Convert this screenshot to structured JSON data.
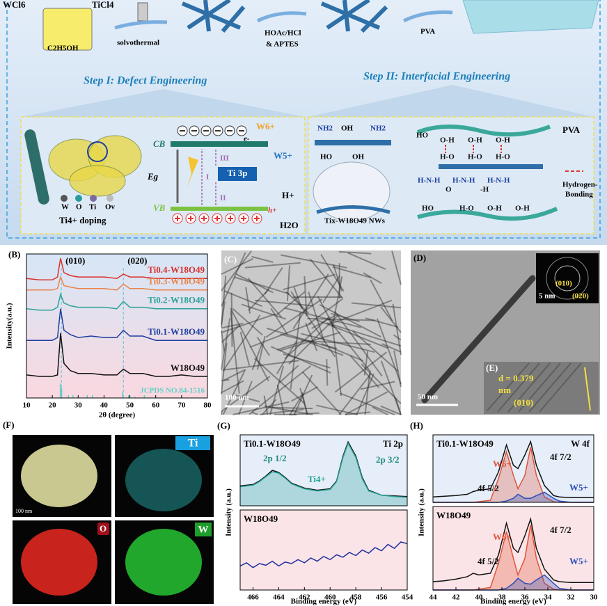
{
  "schematic": {
    "reagents": [
      "WCl6",
      "TiCl4",
      "C2H5OH"
    ],
    "steps": [
      "solvothermal",
      "HOAc/HCl",
      "& APTES",
      "PVA"
    ],
    "step1": "Step I: Defect Engineering",
    "step2": "Step II: Interfacial Engineering",
    "band": {
      "cb": "CB",
      "vb": "VB",
      "eg": "Eg",
      "electron": "e-",
      "hole": "h+",
      "w6": "W6+",
      "w5": "W5+",
      "h_plus": "H+",
      "water": "H2O",
      "ti3p": "Ti 3p",
      "paths": [
        "I",
        "II",
        "III"
      ]
    },
    "doping": {
      "legend": [
        "W",
        "O",
        "Ti",
        "Ov"
      ],
      "caption": "Ti4+ doping"
    },
    "interface": {
      "groups": [
        "NH2",
        "OH",
        "NH2",
        "HO",
        "OH"
      ],
      "nws": "Tix-W18O49 NWs",
      "pva": "PVA",
      "hbond": [
        "Hydrogen-",
        "Bonding"
      ],
      "bonds": [
        "HO",
        "O-H",
        "O-H",
        "O-H",
        "H-O",
        "H-O",
        "H-O",
        "H-N-H",
        "H-N-H",
        "H-N-H",
        "O",
        "-H",
        "HO",
        "H-O",
        "O-H",
        "O-H"
      ]
    }
  },
  "images": {
    "c": {
      "label": "(C)",
      "scale": "100 nm"
    },
    "d": {
      "label": "(D)",
      "scale": "50 nm",
      "saed": [
        "(010)",
        "(020)"
      ],
      "saed_scale": "5 nm",
      "inset_label": "(E)",
      "d_spacing": "d = 0.379",
      "unit": "nm",
      "plane": "(010)"
    },
    "f": {
      "label": "(F)",
      "maps": [
        "Ti",
        "O",
        "W"
      ],
      "scale": "100 nm"
    }
  },
  "chart_data": [
    {
      "type": "line",
      "panel": "(B)",
      "xlabel": "2θ (degree)",
      "ylabel": "Intensity(a.u.)",
      "x": [
        10,
        15,
        20,
        22,
        23.2,
        24.5,
        27,
        30,
        35,
        40,
        45,
        47.5,
        50,
        55,
        60,
        65,
        70,
        75,
        80
      ],
      "xlim": [
        10,
        80
      ],
      "ylim": [
        0,
        100
      ],
      "xticks": [
        10,
        20,
        30,
        40,
        50,
        60,
        70,
        80
      ],
      "series": [
        {
          "name": "Ti0.4-W18O49",
          "color": "#d9302c",
          "values": [
            83,
            82,
            82,
            84,
            97,
            87,
            85,
            84,
            84,
            84,
            83,
            86,
            84,
            84,
            83,
            83,
            83,
            83,
            83
          ]
        },
        {
          "name": "Ti0.3-W18O49",
          "color": "#e8834a",
          "values": [
            75,
            75,
            75,
            76,
            84,
            78,
            77,
            76,
            76,
            76,
            75,
            79,
            76,
            76,
            75,
            75,
            75,
            75,
            75
          ]
        },
        {
          "name": "Ti0.2-W18O49",
          "color": "#2aa198",
          "values": [
            62,
            61,
            61,
            63,
            72,
            66,
            64,
            63,
            63,
            63,
            62,
            67,
            63,
            63,
            62,
            62,
            62,
            62,
            62
          ]
        },
        {
          "name": "Ti0.1-W18O49",
          "color": "#1d3fa0",
          "values": [
            40,
            40,
            40,
            42,
            62,
            47,
            44,
            42,
            43,
            42,
            42,
            47,
            43,
            43,
            40,
            40,
            40,
            40,
            40
          ]
        },
        {
          "name": "W18O49",
          "color": "#111111",
          "values": [
            16,
            15,
            15,
            16,
            45,
            24,
            19,
            17,
            17,
            16,
            16,
            20,
            17,
            17,
            15,
            15,
            16,
            15,
            15
          ]
        }
      ],
      "reference": {
        "name": "JCPDS NO.84-1516",
        "color": "#5fd0c8",
        "x": [
          23.1,
          23.6,
          26.2,
          28,
          33.5,
          35.5,
          47.2,
          49.5,
          52,
          55.6
        ],
        "values": [
          10,
          7,
          2,
          2,
          2,
          2,
          4,
          2,
          1,
          2
        ]
      },
      "reference_lines": [
        23.5,
        47.5
      ],
      "annotations": [
        "(010)",
        "(020)"
      ]
    },
    {
      "type": "line",
      "panel": "(G)",
      "title": "Ti0.1-W18O49",
      "subtitle": "Ti 2p",
      "ylabel": "Intensity (a.u.)",
      "x": [
        467,
        466,
        465.5,
        465,
        464.5,
        464,
        463.5,
        463,
        462,
        461,
        460,
        459.5,
        459,
        458.6,
        458,
        457.5,
        457,
        456,
        455,
        454
      ],
      "xlim": [
        467,
        454
      ],
      "ylim": [
        0,
        100
      ],
      "series": [
        {
          "color": "#111111",
          "values": [
            28,
            30,
            35,
            42,
            50,
            47,
            40,
            32,
            25,
            22,
            24,
            35,
            70,
            90,
            70,
            40,
            22,
            15,
            14,
            13
          ]
        },
        {
          "name": "Ti4+",
          "color": "#2aa198",
          "fill": true,
          "values": [
            27,
            29,
            34,
            41,
            48,
            46,
            39,
            31,
            24,
            21,
            23,
            34,
            68,
            88,
            68,
            38,
            21,
            15,
            13,
            12
          ]
        }
      ],
      "annotations": [
        "2p 1/2",
        "2p 3/2"
      ]
    },
    {
      "type": "line",
      "title": "W18O49",
      "xlabel": "Binding energy (eV)",
      "x": [
        467,
        466.5,
        466,
        465.5,
        465,
        464.5,
        464,
        463.5,
        463,
        462.5,
        462,
        461.5,
        461,
        460.5,
        460,
        459.5,
        459,
        458.5,
        458,
        457.5,
        457,
        456.5,
        456,
        455.5,
        455,
        454.5,
        454
      ],
      "xlim": [
        467,
        454
      ],
      "ylim": [
        0,
        100
      ],
      "xticks": [
        466,
        464,
        462,
        460,
        458,
        456,
        454
      ],
      "series": [
        {
          "color": "#1d2fa0",
          "values": [
            30,
            34,
            28,
            33,
            31,
            36,
            30,
            35,
            33,
            38,
            34,
            40,
            36,
            42,
            38,
            44,
            41,
            47,
            43,
            50,
            46,
            53,
            49,
            57,
            52,
            60,
            58
          ]
        }
      ]
    },
    {
      "type": "line",
      "panel": "(H)",
      "title": "Ti0.1-W18O49",
      "subtitle": "W 4f",
      "ylabel": "Intensity (a.u.)",
      "x": [
        44,
        43,
        42,
        41,
        40.5,
        40,
        39,
        38.3,
        37.6,
        37,
        36.6,
        36,
        35.5,
        35,
        34.3,
        33.5,
        33,
        32,
        31,
        30
      ],
      "xlim": [
        44,
        30
      ],
      "ylim": [
        0,
        100
      ],
      "series": [
        {
          "color": "#111111",
          "values": [
            8,
            9,
            10,
            12,
            16,
            18,
            20,
            45,
            85,
            55,
            50,
            70,
            90,
            55,
            25,
            10,
            8,
            7,
            7,
            7
          ]
        },
        {
          "name": "W6+",
          "color": "#e0553a",
          "fill": true,
          "values": [
            0,
            0,
            0,
            0,
            0,
            1,
            3,
            35,
            75,
            40,
            20,
            40,
            82,
            40,
            8,
            1,
            0,
            0,
            0,
            0
          ]
        },
        {
          "name": "W5+",
          "color": "#2b4fb8",
          "fill": true,
          "values": [
            0,
            0,
            0,
            0,
            0,
            0,
            0,
            0,
            2,
            6,
            12,
            6,
            6,
            10,
            15,
            6,
            2,
            0,
            0,
            0
          ]
        }
      ],
      "annotations": [
        "4f 7/2",
        "4f 5/2"
      ]
    },
    {
      "type": "line",
      "title": "W18O49",
      "xlabel": "Binding energy (eV)",
      "x": [
        44,
        43,
        42,
        41,
        40.5,
        40,
        39,
        38.3,
        37.6,
        37,
        36.6,
        36,
        35.5,
        35,
        34.3,
        33.5,
        33,
        32,
        31,
        30
      ],
      "xlim": [
        44,
        30
      ],
      "ylim": [
        0,
        100
      ],
      "xticks": [
        44,
        42,
        40,
        38,
        36,
        34,
        32,
        30
      ],
      "series": [
        {
          "color": "#111111",
          "values": [
            10,
            11,
            13,
            16,
            20,
            18,
            20,
            42,
            80,
            50,
            45,
            65,
            85,
            50,
            25,
            12,
            10,
            9,
            9,
            9
          ]
        },
        {
          "name": "W6+",
          "color": "#e0553a",
          "fill": true,
          "values": [
            0,
            0,
            0,
            0,
            0,
            1,
            3,
            32,
            70,
            38,
            18,
            38,
            78,
            38,
            8,
            1,
            0,
            0,
            0,
            0
          ]
        },
        {
          "name": "W5+",
          "color": "#2b4fb8",
          "fill": true,
          "values": [
            0,
            0,
            0,
            0,
            0,
            0,
            0,
            0,
            2,
            8,
            14,
            8,
            7,
            12,
            18,
            8,
            2,
            0,
            0,
            0
          ]
        }
      ],
      "annotations": [
        "4f 7/2",
        "4f 5/2"
      ]
    }
  ]
}
